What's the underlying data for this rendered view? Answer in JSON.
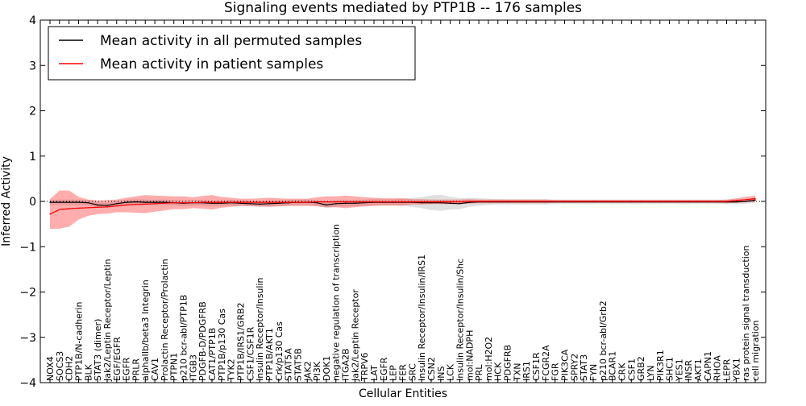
{
  "chart_data": {
    "type": "line",
    "title": "Signaling events mediated by PTP1B -- 176 samples",
    "xlabel": "Cellular Entities",
    "ylabel": "Inferred Activity",
    "ylim": [
      -4,
      4
    ],
    "yticks": [
      -4,
      -3,
      -2,
      -1,
      0,
      1,
      2,
      3,
      4
    ],
    "ytick_labels": [
      "−4",
      "−3",
      "−2",
      "−1",
      "0",
      "1",
      "2",
      "3",
      "4"
    ],
    "legend": {
      "placement": "top-left",
      "entries": [
        {
          "label": "Mean activity in all permuted samples",
          "color": "#000000"
        },
        {
          "label": "Mean activity in patient samples",
          "color": "#ff0000"
        }
      ]
    },
    "categories": [
      "NOX4",
      "SOCS3",
      "CDH2",
      "PTP1B/N-cadherin",
      "BLK",
      "STAT3 (dimer)",
      "Jak2/Leptin Receptor/Leptin",
      "EGF/EGFR",
      "EGFR",
      "PRLR",
      "alphaIIb/beta3 Integrin",
      "CAV1",
      "Prolactin Receptor/Prolactin",
      "PTPN1",
      "p210 bcr-abl/PTP1B",
      "ITGB3",
      "PDGFB-D/PDGFRB",
      "CAT1/PTP1B",
      "PTP1B/p130 Cas",
      "TYK2",
      "PTP1B/IRS1/GRB2",
      "CSF1/CSF1R",
      "Insulin Receptor/Insulin",
      "PTP1B/AKT1",
      "Crk/p130 Cas",
      "STAT5A",
      "STAT5B",
      "JAK2",
      "PI3K",
      "DOK1",
      "negative regulation of transcription",
      "ITGA2B",
      "Jak2/Leptin Receptor",
      "TRPV6",
      "LAT",
      "EGFR",
      "LEP",
      "FER",
      "SRC",
      "Insulin Receptor/Insulin/IRS1",
      "CSN2",
      "INS",
      "LCK",
      "Insulin Receptor/Insulin/Shc",
      "mol:NADPH",
      "PRL",
      "mol:H2O2",
      "HCK",
      "PDGFRB",
      "TXN",
      "IRS1",
      "CSF1R",
      "FCGR2A",
      "FGR",
      "PIK3CA",
      "SPRY2",
      "STAT3",
      "FYN",
      "p210 bcr-abl/Grb2",
      "BCAR1",
      "CRK",
      "CSF1",
      "GRB2",
      "LYN",
      "PIK3R1",
      "SHC1",
      "YES1",
      "INSR",
      "AKT1",
      "CAPN1",
      "RHOA",
      "LEPR",
      "YBX1",
      "ras protein signal transduction",
      "cell migration"
    ],
    "series": [
      {
        "name": "Mean activity in all permuted samples",
        "color": "#000000",
        "values": [
          -0.02,
          -0.02,
          -0.02,
          -0.02,
          -0.03,
          -0.08,
          -0.09,
          -0.05,
          -0.02,
          -0.01,
          -0.02,
          -0.02,
          -0.02,
          -0.03,
          -0.04,
          -0.03,
          -0.03,
          -0.04,
          -0.04,
          -0.03,
          -0.04,
          -0.05,
          -0.06,
          -0.05,
          -0.04,
          -0.03,
          -0.02,
          -0.02,
          -0.03,
          -0.08,
          -0.05,
          -0.04,
          -0.04,
          -0.03,
          -0.02,
          -0.02,
          -0.02,
          -0.02,
          -0.02,
          -0.03,
          -0.03,
          -0.03,
          -0.04,
          -0.05,
          -0.02,
          -0.01,
          -0.01,
          -0.01,
          -0.01,
          -0.01,
          -0.01,
          -0.01,
          -0.01,
          -0.01,
          -0.01,
          -0.01,
          -0.01,
          -0.01,
          -0.01,
          -0.01,
          -0.01,
          -0.01,
          -0.01,
          -0.01,
          -0.01,
          -0.01,
          -0.01,
          -0.01,
          -0.01,
          -0.01,
          -0.01,
          -0.01,
          -0.01,
          0.0,
          0.03
        ],
        "band": [
          0.06,
          0.06,
          0.06,
          0.06,
          0.06,
          0.06,
          0.06,
          0.06,
          0.06,
          0.06,
          0.06,
          0.06,
          0.06,
          0.06,
          0.06,
          0.06,
          0.06,
          0.06,
          0.06,
          0.06,
          0.06,
          0.06,
          0.06,
          0.06,
          0.06,
          0.06,
          0.06,
          0.06,
          0.06,
          0.07,
          0.07,
          0.07,
          0.07,
          0.07,
          0.07,
          0.07,
          0.07,
          0.08,
          0.1,
          0.12,
          0.16,
          0.18,
          0.14,
          0.12,
          0.1,
          0.08,
          0.07,
          0.06,
          0.06,
          0.06,
          0.06,
          0.06,
          0.06,
          0.05,
          0.05,
          0.05,
          0.05,
          0.05,
          0.05,
          0.05,
          0.05,
          0.05,
          0.05,
          0.05,
          0.05,
          0.05,
          0.05,
          0.05,
          0.05,
          0.05,
          0.05,
          0.05,
          0.05,
          0.05,
          0.06
        ]
      },
      {
        "name": "Mean activity in patient samples",
        "color": "#ff0000",
        "values": [
          -0.28,
          -0.18,
          -0.16,
          -0.15,
          -0.14,
          -0.13,
          -0.12,
          -0.1,
          -0.08,
          -0.07,
          -0.06,
          -0.05,
          -0.04,
          -0.03,
          -0.03,
          -0.03,
          -0.02,
          -0.02,
          -0.02,
          -0.02,
          -0.02,
          -0.02,
          -0.02,
          -0.02,
          -0.02,
          -0.02,
          -0.02,
          -0.02,
          -0.01,
          -0.01,
          -0.01,
          -0.01,
          -0.01,
          -0.01,
          -0.01,
          -0.01,
          -0.01,
          -0.01,
          -0.01,
          -0.01,
          -0.01,
          -0.01,
          -0.01,
          -0.01,
          0.0,
          0.0,
          0.0,
          0.0,
          0.0,
          0.0,
          0.0,
          0.0,
          0.0,
          0.0,
          0.0,
          0.0,
          0.0,
          0.0,
          0.0,
          0.0,
          0.0,
          0.0,
          0.0,
          0.0,
          0.0,
          0.0,
          0.0,
          0.0,
          0.0,
          0.0,
          0.0,
          0.0,
          0.02,
          0.04,
          0.06
        ],
        "band": [
          0.33,
          0.42,
          0.4,
          0.25,
          0.18,
          0.15,
          0.15,
          0.14,
          0.16,
          0.18,
          0.2,
          0.18,
          0.16,
          0.14,
          0.14,
          0.12,
          0.14,
          0.16,
          0.12,
          0.1,
          0.08,
          0.08,
          0.09,
          0.1,
          0.09,
          0.08,
          0.08,
          0.08,
          0.1,
          0.12,
          0.12,
          0.14,
          0.12,
          0.1,
          0.09,
          0.08,
          0.08,
          0.08,
          0.06,
          0.06,
          0.05,
          0.05,
          0.05,
          0.05,
          0.05,
          0.04,
          0.04,
          0.04,
          0.04,
          0.04,
          0.04,
          0.04,
          0.04,
          0.03,
          0.03,
          0.03,
          0.03,
          0.03,
          0.03,
          0.03,
          0.03,
          0.03,
          0.03,
          0.03,
          0.03,
          0.03,
          0.03,
          0.03,
          0.03,
          0.03,
          0.03,
          0.04,
          0.05,
          0.06,
          0.07
        ]
      }
    ]
  }
}
